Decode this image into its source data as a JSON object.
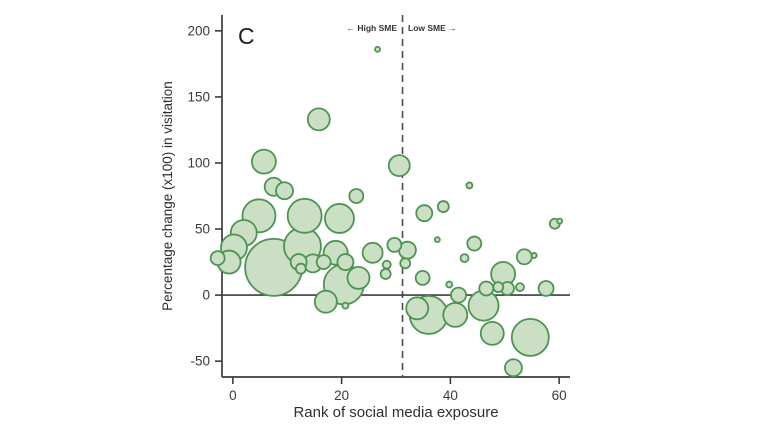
{
  "chart_data": {
    "type": "scatter",
    "subtype": "bubble",
    "panel_label": "C",
    "xlabel": "Rank of social media exposure",
    "ylabel": "Percentage change (x100) in visitation",
    "x_ticks": [
      0,
      20,
      40,
      60
    ],
    "y_ticks": [
      -50,
      0,
      50,
      100,
      150,
      200
    ],
    "xlim": [
      -2,
      62
    ],
    "ylim": [
      -62,
      212
    ],
    "grid": false,
    "zero_line_y": 0,
    "annotations": {
      "high_sme_label": "← High SME",
      "low_sme_label": "Low SME →",
      "divider_x": 31.2,
      "divider_style": "dashed"
    },
    "colors": {
      "bubble_fill": "#cadfc3",
      "bubble_stroke": "#4d9453",
      "axis": "#3c3c3c",
      "divider": "#4a4a4a"
    },
    "points": [
      {
        "x": 5.7,
        "y": 101,
        "r": 12
      },
      {
        "x": 7.5,
        "y": 82,
        "r": 9
      },
      {
        "x": 9.5,
        "y": 79,
        "r": 8.5
      },
      {
        "x": 4.8,
        "y": 60,
        "r": 16.5
      },
      {
        "x": 13.2,
        "y": 60,
        "r": 17
      },
      {
        "x": 19.6,
        "y": 58,
        "r": 14.5
      },
      {
        "x": 15.8,
        "y": 133,
        "r": 11
      },
      {
        "x": 2.0,
        "y": 47,
        "r": 13
      },
      {
        "x": 0.2,
        "y": 36,
        "r": 13
      },
      {
        "x": -0.7,
        "y": 25,
        "r": 11.5
      },
      {
        "x": -2.8,
        "y": 28,
        "r": 7
      },
      {
        "x": 7.5,
        "y": 21,
        "r": 28.5
      },
      {
        "x": 12.8,
        "y": 37,
        "r": 18.5
      },
      {
        "x": 12.1,
        "y": 25,
        "r": 8
      },
      {
        "x": 12.5,
        "y": 20,
        "r": 5
      },
      {
        "x": 14.7,
        "y": 24,
        "r": 9
      },
      {
        "x": 16.7,
        "y": 25,
        "r": 7
      },
      {
        "x": 18.9,
        "y": 32,
        "r": 12
      },
      {
        "x": 20.7,
        "y": 25,
        "r": 8
      },
      {
        "x": 17.1,
        "y": -5,
        "r": 11
      },
      {
        "x": 20.7,
        "y": -8,
        "r": 3
      },
      {
        "x": 20.4,
        "y": 8,
        "r": 20
      },
      {
        "x": 23.1,
        "y": 13,
        "r": 11
      },
      {
        "x": 25.7,
        "y": 32,
        "r": 10
      },
      {
        "x": 22.7,
        "y": 75,
        "r": 7
      },
      {
        "x": 26.6,
        "y": 186,
        "r": 2.5
      },
      {
        "x": 30.6,
        "y": 98,
        "r": 10.5
      },
      {
        "x": 28.3,
        "y": 23,
        "r": 4
      },
      {
        "x": 28.1,
        "y": 16,
        "r": 5
      },
      {
        "x": 29.7,
        "y": 38,
        "r": 7
      },
      {
        "x": 32.1,
        "y": 34,
        "r": 8.5
      },
      {
        "x": 31.7,
        "y": 24,
        "r": 5
      },
      {
        "x": 34.9,
        "y": 13,
        "r": 7
      },
      {
        "x": 35.2,
        "y": 62,
        "r": 8
      },
      {
        "x": 38.7,
        "y": 67,
        "r": 5.5
      },
      {
        "x": 37.6,
        "y": 42,
        "r": 2.5
      },
      {
        "x": 43.5,
        "y": 83,
        "r": 3
      },
      {
        "x": 44.4,
        "y": 39,
        "r": 7
      },
      {
        "x": 42.6,
        "y": 28,
        "r": 4
      },
      {
        "x": 39.8,
        "y": 8,
        "r": 3
      },
      {
        "x": 41.5,
        "y": 0,
        "r": 7.5
      },
      {
        "x": 33.9,
        "y": -10,
        "r": 11
      },
      {
        "x": 36.0,
        "y": -15,
        "r": 19
      },
      {
        "x": 40.9,
        "y": -15,
        "r": 12
      },
      {
        "x": 46.1,
        "y": -8,
        "r": 15
      },
      {
        "x": 47.7,
        "y": -29,
        "r": 11.5
      },
      {
        "x": 54.7,
        "y": -32,
        "r": 18.5
      },
      {
        "x": 51.6,
        "y": -55,
        "r": 8.5
      },
      {
        "x": 46.6,
        "y": 5,
        "r": 7
      },
      {
        "x": 48.8,
        "y": 6,
        "r": 5
      },
      {
        "x": 50.5,
        "y": 5,
        "r": 6.5
      },
      {
        "x": 52.8,
        "y": 6,
        "r": 4
      },
      {
        "x": 57.6,
        "y": 5,
        "r": 7.5
      },
      {
        "x": 49.7,
        "y": 16,
        "r": 12
      },
      {
        "x": 53.6,
        "y": 29,
        "r": 7.5
      },
      {
        "x": 55.4,
        "y": 30,
        "r": 2.5
      },
      {
        "x": 59.2,
        "y": 54,
        "r": 5
      },
      {
        "x": 60.1,
        "y": 56,
        "r": 2.5
      }
    ]
  }
}
